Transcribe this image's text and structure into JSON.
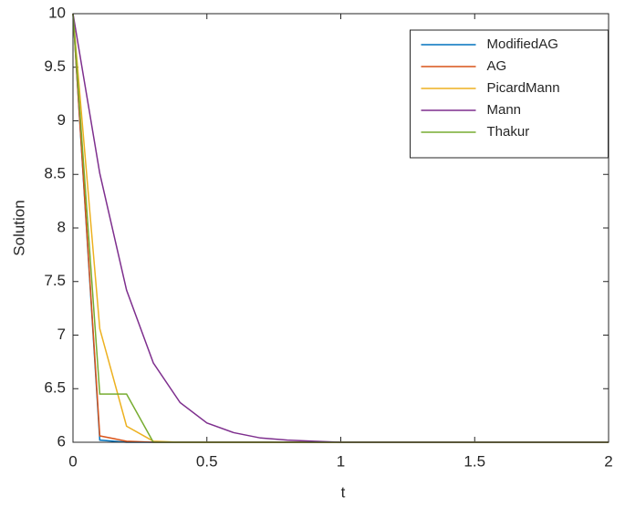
{
  "chart_data": {
    "type": "line",
    "x_label": "t",
    "y_label": "Solution",
    "x": [
      0,
      0.1,
      0.2,
      0.3,
      0.4,
      0.5,
      0.6,
      0.7,
      0.8,
      0.9,
      1.0,
      1.1,
      1.2,
      1.3,
      1.4,
      1.5,
      1.6,
      1.7,
      1.8,
      1.9,
      2.0
    ],
    "series": [
      {
        "name": "ModifiedAG",
        "color": "#0072BD",
        "values": [
          10,
          6.02,
          6,
          6,
          6,
          6,
          6,
          6,
          6,
          6,
          6,
          6,
          6,
          6,
          6,
          6,
          6,
          6,
          6,
          6,
          6
        ]
      },
      {
        "name": "AG",
        "color": "#D95319",
        "values": [
          10,
          6.06,
          6.01,
          6,
          6,
          6,
          6,
          6,
          6,
          6,
          6,
          6,
          6,
          6,
          6,
          6,
          6,
          6,
          6,
          6,
          6
        ]
      },
      {
        "name": "PicardMann",
        "color": "#EDB120",
        "values": [
          10,
          7.06,
          6.15,
          6.01,
          6,
          6,
          6,
          6,
          6,
          6,
          6,
          6,
          6,
          6,
          6,
          6,
          6,
          6,
          6,
          6,
          6
        ]
      },
      {
        "name": "Mann",
        "color": "#7E2F8E",
        "values": [
          10,
          8.51,
          7.42,
          6.74,
          6.37,
          6.18,
          6.09,
          6.04,
          6.02,
          6.01,
          6,
          6,
          6,
          6,
          6,
          6,
          6,
          6,
          6,
          6,
          6
        ]
      },
      {
        "name": "Thakur",
        "color": "#77AC30",
        "values": [
          10,
          6.45,
          6.45,
          6,
          6,
          6,
          6,
          6,
          6,
          6,
          6,
          6,
          6,
          6,
          6,
          6,
          6,
          6,
          6,
          6,
          6
        ]
      }
    ],
    "xlim": [
      0,
      2
    ],
    "xticks": [
      0,
      0.5,
      1,
      1.5,
      2
    ],
    "ylim": [
      6,
      10
    ],
    "yticks": [
      6,
      6.5,
      7,
      7.5,
      8,
      8.5,
      9,
      9.5,
      10
    ],
    "grid": false,
    "legend": "top-right"
  }
}
